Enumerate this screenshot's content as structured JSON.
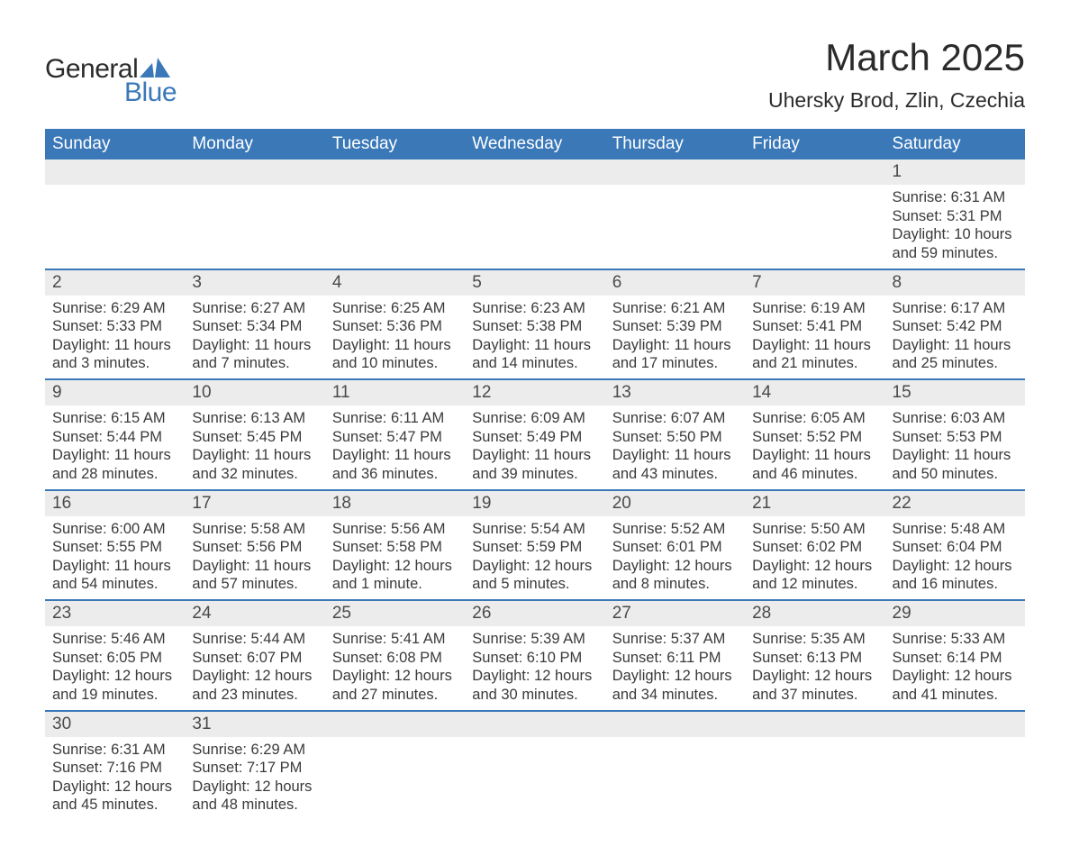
{
  "logo": {
    "text1": "General",
    "text2": "Blue"
  },
  "title": "March 2025",
  "location": "Uhersky Brod, Zlin, Czechia",
  "colors": {
    "header_bg": "#3a78b8",
    "header_text": "#ffffff",
    "daynum_bg": "#ececec",
    "row_border": "#3a78b8",
    "body_text": "#3a3a3a",
    "title_text": "#2b2b2b",
    "logo_blue": "#3a78b8"
  },
  "weekdays": [
    "Sunday",
    "Monday",
    "Tuesday",
    "Wednesday",
    "Thursday",
    "Friday",
    "Saturday"
  ],
  "weeks": [
    [
      null,
      null,
      null,
      null,
      null,
      null,
      {
        "n": "1",
        "sun": "Sunrise: 6:31 AM",
        "set": "Sunset: 5:31 PM",
        "dl1": "Daylight: 10 hours",
        "dl2": "and 59 minutes."
      }
    ],
    [
      {
        "n": "2",
        "sun": "Sunrise: 6:29 AM",
        "set": "Sunset: 5:33 PM",
        "dl1": "Daylight: 11 hours",
        "dl2": "and 3 minutes."
      },
      {
        "n": "3",
        "sun": "Sunrise: 6:27 AM",
        "set": "Sunset: 5:34 PM",
        "dl1": "Daylight: 11 hours",
        "dl2": "and 7 minutes."
      },
      {
        "n": "4",
        "sun": "Sunrise: 6:25 AM",
        "set": "Sunset: 5:36 PM",
        "dl1": "Daylight: 11 hours",
        "dl2": "and 10 minutes."
      },
      {
        "n": "5",
        "sun": "Sunrise: 6:23 AM",
        "set": "Sunset: 5:38 PM",
        "dl1": "Daylight: 11 hours",
        "dl2": "and 14 minutes."
      },
      {
        "n": "6",
        "sun": "Sunrise: 6:21 AM",
        "set": "Sunset: 5:39 PM",
        "dl1": "Daylight: 11 hours",
        "dl2": "and 17 minutes."
      },
      {
        "n": "7",
        "sun": "Sunrise: 6:19 AM",
        "set": "Sunset: 5:41 PM",
        "dl1": "Daylight: 11 hours",
        "dl2": "and 21 minutes."
      },
      {
        "n": "8",
        "sun": "Sunrise: 6:17 AM",
        "set": "Sunset: 5:42 PM",
        "dl1": "Daylight: 11 hours",
        "dl2": "and 25 minutes."
      }
    ],
    [
      {
        "n": "9",
        "sun": "Sunrise: 6:15 AM",
        "set": "Sunset: 5:44 PM",
        "dl1": "Daylight: 11 hours",
        "dl2": "and 28 minutes."
      },
      {
        "n": "10",
        "sun": "Sunrise: 6:13 AM",
        "set": "Sunset: 5:45 PM",
        "dl1": "Daylight: 11 hours",
        "dl2": "and 32 minutes."
      },
      {
        "n": "11",
        "sun": "Sunrise: 6:11 AM",
        "set": "Sunset: 5:47 PM",
        "dl1": "Daylight: 11 hours",
        "dl2": "and 36 minutes."
      },
      {
        "n": "12",
        "sun": "Sunrise: 6:09 AM",
        "set": "Sunset: 5:49 PM",
        "dl1": "Daylight: 11 hours",
        "dl2": "and 39 minutes."
      },
      {
        "n": "13",
        "sun": "Sunrise: 6:07 AM",
        "set": "Sunset: 5:50 PM",
        "dl1": "Daylight: 11 hours",
        "dl2": "and 43 minutes."
      },
      {
        "n": "14",
        "sun": "Sunrise: 6:05 AM",
        "set": "Sunset: 5:52 PM",
        "dl1": "Daylight: 11 hours",
        "dl2": "and 46 minutes."
      },
      {
        "n": "15",
        "sun": "Sunrise: 6:03 AM",
        "set": "Sunset: 5:53 PM",
        "dl1": "Daylight: 11 hours",
        "dl2": "and 50 minutes."
      }
    ],
    [
      {
        "n": "16",
        "sun": "Sunrise: 6:00 AM",
        "set": "Sunset: 5:55 PM",
        "dl1": "Daylight: 11 hours",
        "dl2": "and 54 minutes."
      },
      {
        "n": "17",
        "sun": "Sunrise: 5:58 AM",
        "set": "Sunset: 5:56 PM",
        "dl1": "Daylight: 11 hours",
        "dl2": "and 57 minutes."
      },
      {
        "n": "18",
        "sun": "Sunrise: 5:56 AM",
        "set": "Sunset: 5:58 PM",
        "dl1": "Daylight: 12 hours",
        "r repro": "",
        "dl2": "and 1 minute."
      },
      {
        "n": "19",
        "sun": "Sunrise: 5:54 AM",
        "set": "Sunset: 5:59 PM",
        "dl1": "Daylight: 12 hours",
        "dl2": "and 5 minutes."
      },
      {
        "n": "20",
        "sun": "Sunrise: 5:52 AM",
        "set": "Sunset: 6:01 PM",
        "dl1": "Daylight: 12 hours",
        "dl2": "and 8 minutes."
      },
      {
        "n": "21",
        "sun": "Sunrise: 5:50 AM",
        "set": "Sunset: 6:02 PM",
        "dl1": "Daylight: 12 hours",
        "dl2": "and 12 minutes."
      },
      {
        "n": "22",
        "sun": "Sunrise: 5:48 AM",
        "set": "Sunset: 6:04 PM",
        "dl1": "Daylight: 12 hours",
        "dl2": "and 16 minutes."
      }
    ],
    [
      {
        "n": "23",
        "sun": "Sunrise: 5:46 AM",
        "set": "Sunset: 6:05 PM",
        "dl1": "Daylight: 12 hours",
        "dl2": "and 19 minutes."
      },
      {
        "n": "24",
        "sun": "Sunrise: 5:44 AM",
        "set": "Sunset: 6:07 PM",
        "dl1": "Daylight: 12 hours",
        "dl2": "and 23 minutes."
      },
      {
        "n": "25",
        "sun": "Sunrise: 5:41 AM",
        "set": "Sunset: 6:08 PM",
        "dl1": "Daylight: 12 hours",
        "dl2": "and 27 minutes."
      },
      {
        "n": "26",
        "sun": "Sunrise: 5:39 AM",
        "set": "Sunset: 6:10 PM",
        "dl1": "Daylight: 12 hours",
        "dl2": "and 30 minutes."
      },
      {
        "n": "27",
        "sun": "Sunrise: 5:37 AM",
        "set": "Sunset: 6:11 PM",
        "dl1": "Daylight: 12 hours",
        "dl2": "and 34 minutes."
      },
      {
        "n": "28",
        "sun": "Sunrise: 5:35 AM",
        "set": "Sunset: 6:13 PM",
        "dl1": "Daylight: 12 hours",
        "dl2": "and 37 minutes."
      },
      {
        "n": "29",
        "sun": "Sunrise: 5:33 AM",
        "set": "Sunset: 6:14 PM",
        "dl1": "Daylight: 12 hours",
        "dl2": "and 41 minutes."
      }
    ],
    [
      {
        "n": "30",
        "sun": "Sunrise: 6:31 AM",
        "set": "Sunset: 7:16 PM",
        "dl1": "Daylight: 12 hours",
        "dl2": "and 45 minutes."
      },
      {
        "n": "31",
        "sun": "Sunrise: 6:29 AM",
        "set": "Sunset: 7:17 PM",
        "dl1": "Daylight: 12 hours",
        "dl2": "and 48 minutes."
      },
      null,
      null,
      null,
      null,
      null
    ]
  ]
}
